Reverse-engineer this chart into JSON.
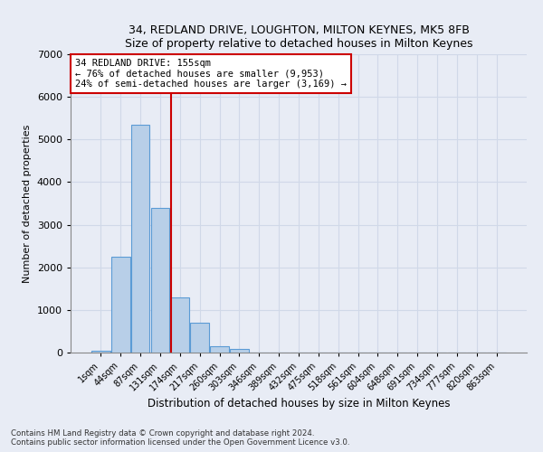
{
  "title1": "34, REDLAND DRIVE, LOUGHTON, MILTON KEYNES, MK5 8FB",
  "title2": "Size of property relative to detached houses in Milton Keynes",
  "xlabel": "Distribution of detached houses by size in Milton Keynes",
  "ylabel": "Number of detached properties",
  "footnote1": "Contains HM Land Registry data © Crown copyright and database right 2024.",
  "footnote2": "Contains public sector information licensed under the Open Government Licence v3.0.",
  "categories": [
    "1sqm",
    "44sqm",
    "87sqm",
    "131sqm",
    "174sqm",
    "217sqm",
    "260sqm",
    "303sqm",
    "346sqm",
    "389sqm",
    "432sqm",
    "475sqm",
    "518sqm",
    "561sqm",
    "604sqm",
    "648sqm",
    "691sqm",
    "734sqm",
    "777sqm",
    "820sqm",
    "863sqm"
  ],
  "bar_values": [
    50,
    2250,
    5350,
    3400,
    1300,
    700,
    150,
    80,
    0,
    0,
    0,
    0,
    0,
    0,
    0,
    0,
    0,
    0,
    0,
    0,
    0
  ],
  "bar_color": "#b8cfe8",
  "bar_edge_color": "#5b9bd5",
  "annotation_box_text": "34 REDLAND DRIVE: 155sqm\n← 76% of detached houses are smaller (9,953)\n24% of semi-detached houses are larger (3,169) →",
  "annotation_box_color": "#ffffff",
  "annotation_box_edge_color": "#cc0000",
  "annotation_line_color": "#cc0000",
  "ylim": [
    0,
    7000
  ],
  "yticks": [
    0,
    1000,
    2000,
    3000,
    4000,
    5000,
    6000,
    7000
  ],
  "grid_color": "#d0d8e8",
  "background_color": "#e8ecf5"
}
